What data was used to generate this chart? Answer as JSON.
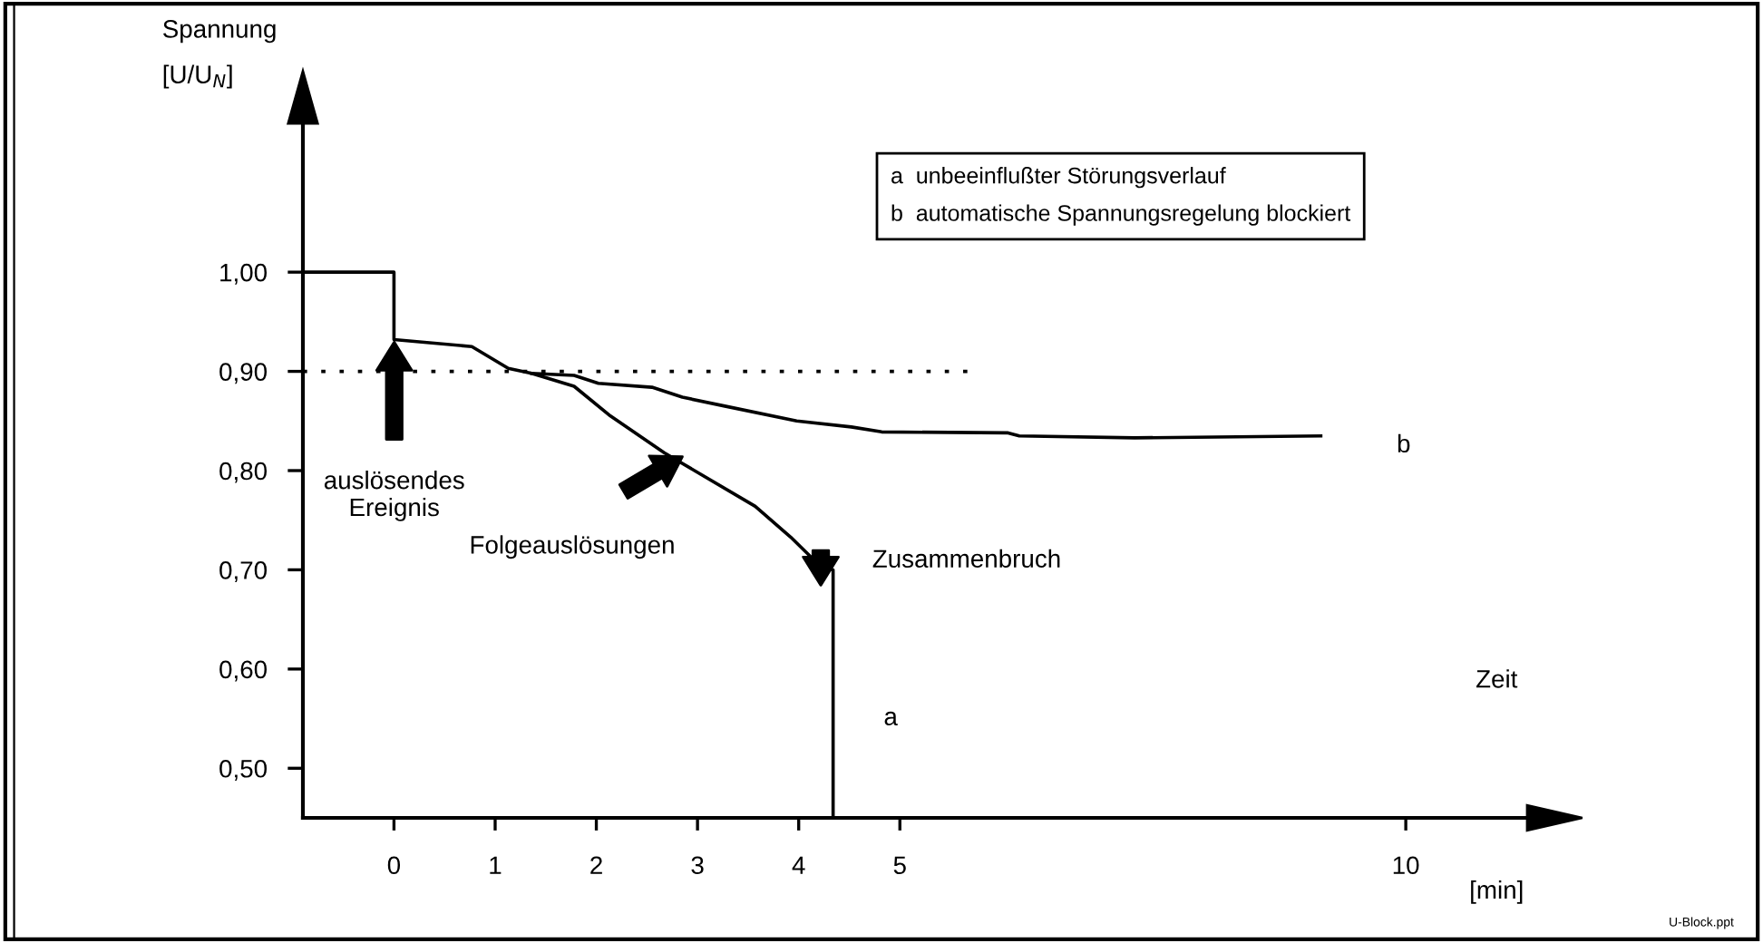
{
  "chart_data": {
    "type": "line",
    "ylabel": "Spannung\n[U/U$_{N}$]",
    "xlabel": "Zeit",
    "xlim": [
      -0.9,
      11.2
    ],
    "ylim": [
      0.45,
      1.15
    ],
    "xticks": [
      0,
      1,
      2,
      3,
      4,
      5,
      10
    ],
    "yticks": [
      {
        "value": 0.5,
        "label": "0,50"
      },
      {
        "value": 0.6,
        "label": "0,60"
      },
      {
        "value": 0.7,
        "label": "0,70"
      },
      {
        "value": 0.8,
        "label": "0,80"
      },
      {
        "value": 0.9,
        "label": "0,90"
      },
      {
        "value": 1.0,
        "label": "1,00"
      }
    ],
    "grid": false,
    "legend": false,
    "marker": "none",
    "series": [
      {
        "name": "a",
        "color": "#000000",
        "line_style": "solid",
        "x": [
          -0.9,
          0,
          0,
          0.77,
          1.13,
          1.36,
          1.78,
          2.14,
          2.67,
          2.97,
          3.57,
          3.92,
          4.21,
          4.34,
          4.34
        ],
        "values": [
          1.0,
          1.0,
          0.932,
          0.925,
          0.903,
          0.898,
          0.885,
          0.855,
          0.818,
          0.8,
          0.764,
          0.733,
          0.704,
          0.7,
          0.45
        ]
      },
      {
        "name": "b",
        "color": "#000000",
        "line_style": "solid",
        "x": [
          1.36,
          1.78,
          2.02,
          2.55,
          2.85,
          3.27,
          3.98,
          4.52,
          4.82,
          6.07,
          6.18,
          7.32,
          9.16
        ],
        "values": [
          0.898,
          0.896,
          0.888,
          0.884,
          0.874,
          0.865,
          0.85,
          0.844,
          0.839,
          0.838,
          0.835,
          0.833,
          0.835
        ]
      },
      {
        "color": "#000000",
        "line_style": "dotted",
        "x": [
          -0.9,
          5.71
        ],
        "values": [
          0.9,
          0.9
        ]
      }
    ],
    "annotations": [
      "auslösendes\nEreignis",
      "Folgeauslösungen",
      "Zusammenbruch",
      "a  unbeeinflußter Störungsverlauf\nb  automatische Spannungsregelung blockiert",
      "[min]",
      "U-Block.ppt"
    ]
  }
}
